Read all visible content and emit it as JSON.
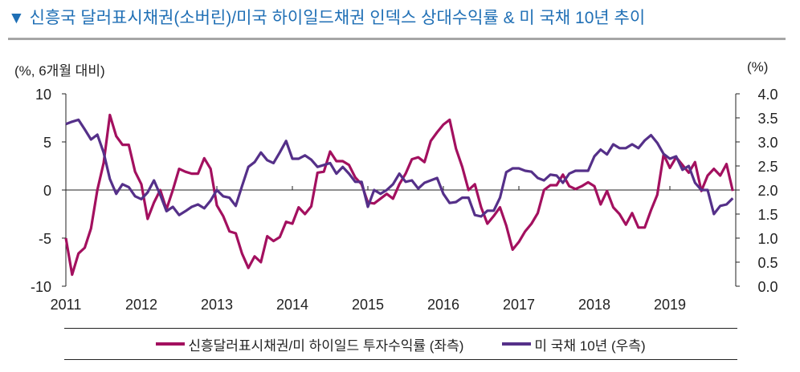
{
  "title": "▼ 신흥국 달러표시채권(소버린)/미국 하이일드채권 인덱스 상대수익률  & 미 국채 10년 추이",
  "chart_data": {
    "type": "line",
    "title": "▼ 신흥국 달러표시채권(소버린)/미국 하이일드채권 인덱스 상대수익률  & 미 국채 10년 추이",
    "left_unit": "(%, 6개월 대비)",
    "right_unit": "(%)",
    "x_start": "2011-01",
    "x_end": "2019-11",
    "frequency": "monthly",
    "x_ticks": [
      "2011",
      "2012",
      "2013",
      "2014",
      "2015",
      "2016",
      "2017",
      "2018",
      "2019"
    ],
    "y_left": {
      "range": [
        -10,
        10
      ],
      "ticks": [
        "10",
        "5",
        "0",
        "-5",
        "-10"
      ]
    },
    "y_right": {
      "range": [
        0,
        4
      ],
      "ticks": [
        "4.0",
        "3.5",
        "3.0",
        "2.5",
        "2.0",
        "1.5",
        "1.0",
        "0.5",
        "0.0"
      ]
    },
    "grid": false,
    "legend_placement": "bottom",
    "series": [
      {
        "name": "신흥달러표시채권/미 하이일드 투자수익률 (좌측)",
        "axis": "left",
        "color": "#a3105f",
        "values": [
          -5,
          -8.8,
          -6.6,
          -6,
          -4,
          0,
          2.8,
          7.8,
          5.6,
          4.7,
          4.7,
          1.9,
          0.6,
          -3,
          -1.3,
          0,
          -2,
          0,
          2.2,
          1.9,
          1.7,
          1.7,
          3.3,
          2.2,
          -1.6,
          -2.7,
          -4.3,
          -4.5,
          -6.6,
          -8.1,
          -6.9,
          -7.5,
          -4.8,
          -5.3,
          -4.9,
          -3.3,
          -3.5,
          -1.8,
          -2.5,
          -1.7,
          1.8,
          1.9,
          4,
          3,
          3,
          2.6,
          1.3,
          0.6,
          -1.3,
          -1.4,
          -0.9,
          -0.4,
          -0.9,
          0.6,
          1.7,
          3.2,
          3.4,
          2.9,
          5.1,
          6.0,
          6.8,
          7.3,
          4.3,
          2.4,
          0,
          0.6,
          -1.8,
          -3.5,
          -2.7,
          -1.8,
          -3.7,
          -6.2,
          -5.4,
          -4.3,
          -3.5,
          -2.4,
          0,
          0.5,
          0.5,
          1.6,
          0.4,
          0.1,
          0.4,
          0.8,
          0.4,
          -1.5,
          -0.1,
          -1.8,
          -2.5,
          -3.6,
          -2.4,
          -3.9,
          -3.9,
          -2.1,
          -0.5,
          3.7,
          2.3,
          3.4,
          2.6,
          1.8,
          2.9,
          -0.1,
          1.5,
          2.2,
          1.5,
          2.7,
          -0.1
        ]
      },
      {
        "name": "미 국채 10년 (우측)",
        "axis": "right",
        "color": "#553089",
        "values": [
          3.37,
          3.42,
          3.46,
          3.26,
          3.05,
          3.15,
          2.78,
          2.23,
          1.92,
          2.12,
          2.06,
          1.87,
          1.81,
          1.95,
          2.2,
          1.9,
          1.56,
          1.65,
          1.48,
          1.56,
          1.65,
          1.7,
          1.62,
          1.78,
          2.0,
          1.87,
          1.84,
          1.67,
          2.08,
          2.48,
          2.58,
          2.78,
          2.62,
          2.56,
          2.78,
          3.02,
          2.65,
          2.65,
          2.72,
          2.63,
          2.48,
          2.52,
          2.56,
          2.34,
          2.48,
          2.34,
          2.17,
          2.17,
          1.65,
          2.0,
          1.92,
          2.0,
          2.12,
          2.34,
          2.17,
          2.2,
          2.03,
          2.15,
          2.2,
          2.25,
          1.92,
          1.73,
          1.75,
          1.84,
          1.84,
          1.48,
          1.45,
          1.57,
          1.57,
          1.84,
          2.37,
          2.45,
          2.45,
          2.4,
          2.38,
          2.25,
          2.2,
          2.32,
          2.3,
          2.15,
          2.34,
          2.4,
          2.4,
          2.4,
          2.7,
          2.84,
          2.74,
          2.95,
          2.87,
          2.87,
          2.95,
          2.87,
          3.03,
          3.14,
          2.98,
          2.75,
          2.65,
          2.7,
          2.42,
          2.5,
          2.15,
          2.0,
          2.0,
          1.5,
          1.67,
          1.7,
          1.83
        ]
      }
    ]
  }
}
